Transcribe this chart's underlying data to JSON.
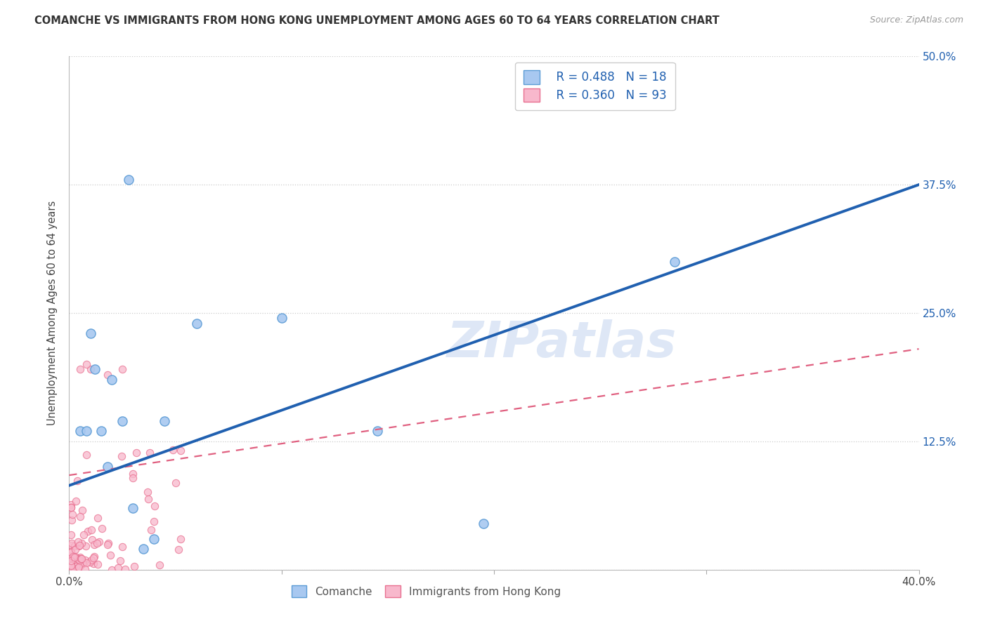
{
  "title": "COMANCHE VS IMMIGRANTS FROM HONG KONG UNEMPLOYMENT AMONG AGES 60 TO 64 YEARS CORRELATION CHART",
  "source": "Source: ZipAtlas.com",
  "ylabel_label": "Unemployment Among Ages 60 to 64 years",
  "xlim": [
    0.0,
    0.4
  ],
  "ylim": [
    0.0,
    0.5
  ],
  "yticks": [
    0.0,
    0.125,
    0.25,
    0.375,
    0.5
  ],
  "ytick_labels_right": [
    "",
    "12.5%",
    "25.0%",
    "37.5%",
    "50.0%"
  ],
  "xticks": [
    0.0,
    0.1,
    0.2,
    0.3,
    0.4
  ],
  "xtick_labels": [
    "0.0%",
    "",
    "",
    "",
    "40.0%"
  ],
  "comanche_color": "#a8c8f0",
  "comanche_edge": "#5b9bd5",
  "hk_color": "#f8b8cc",
  "hk_edge": "#e87090",
  "trendline_comanche_color": "#2060b0",
  "trendline_hk_color": "#e06080",
  "legend_r_comanche": "R = 0.488",
  "legend_n_comanche": "N = 18",
  "legend_r_hk": "R = 0.360",
  "legend_n_hk": "N = 93",
  "watermark": "ZIPatlas",
  "watermark_color": "#c8d8f0",
  "comanche_x": [
    0.005,
    0.008,
    0.01,
    0.012,
    0.015,
    0.018,
    0.02,
    0.025,
    0.028,
    0.03,
    0.035,
    0.04,
    0.045,
    0.06,
    0.1,
    0.145,
    0.195,
    0.285
  ],
  "comanche_y": [
    0.135,
    0.135,
    0.23,
    0.195,
    0.135,
    0.1,
    0.185,
    0.145,
    0.38,
    0.06,
    0.02,
    0.03,
    0.145,
    0.24,
    0.245,
    0.135,
    0.045,
    0.3
  ],
  "trendline_comanche_x0": 0.0,
  "trendline_comanche_y0": 0.082,
  "trendline_comanche_x1": 0.4,
  "trendline_comanche_y1": 0.375,
  "trendline_hk_x0": 0.0,
  "trendline_hk_y0": 0.092,
  "trendline_hk_x1": 0.4,
  "trendline_hk_y1": 0.215
}
